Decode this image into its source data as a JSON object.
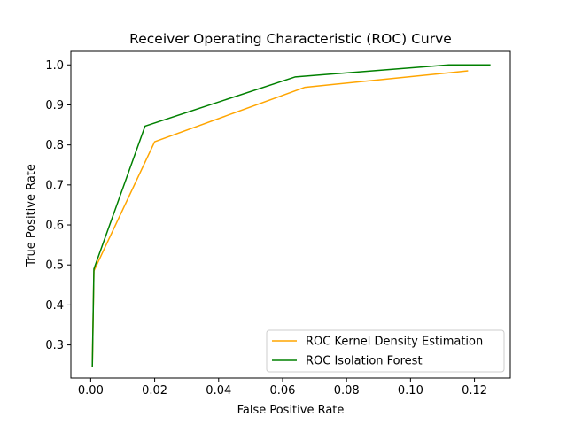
{
  "chart_data": {
    "type": "line",
    "title": "Receiver Operating Characteristic (ROC) Curve",
    "xlabel": "False Positive Rate",
    "ylabel": "True Positive Rate",
    "xlim": [
      -0.0062,
      0.1312
    ],
    "ylim": [
      0.2172,
      1.0338
    ],
    "xticks": [
      0.0,
      0.02,
      0.04,
      0.06,
      0.08,
      0.1,
      0.12
    ],
    "xtick_labels": [
      "0.00",
      "0.02",
      "0.04",
      "0.06",
      "0.08",
      "0.10",
      "0.12"
    ],
    "yticks": [
      0.3,
      0.4,
      0.5,
      0.6,
      0.7,
      0.8,
      0.9,
      1.0
    ],
    "ytick_labels": [
      "0.3",
      "0.4",
      "0.5",
      "0.6",
      "0.7",
      "0.8",
      "0.9",
      "1.0"
    ],
    "grid": false,
    "legend_position": "lower-right",
    "series": [
      {
        "name": "ROC Kernel Density Estimation",
        "color": "#ffa500",
        "x": [
          0.0005,
          0.001,
          0.02,
          0.067,
          0.118
        ],
        "y": [
          0.245,
          0.485,
          0.808,
          0.944,
          0.985
        ]
      },
      {
        "name": "ROC Isolation Forest",
        "color": "#008000",
        "x": [
          0.0005,
          0.001,
          0.017,
          0.064,
          0.112,
          0.125
        ],
        "y": [
          0.245,
          0.49,
          0.847,
          0.97,
          1.0,
          1.0
        ]
      }
    ]
  }
}
